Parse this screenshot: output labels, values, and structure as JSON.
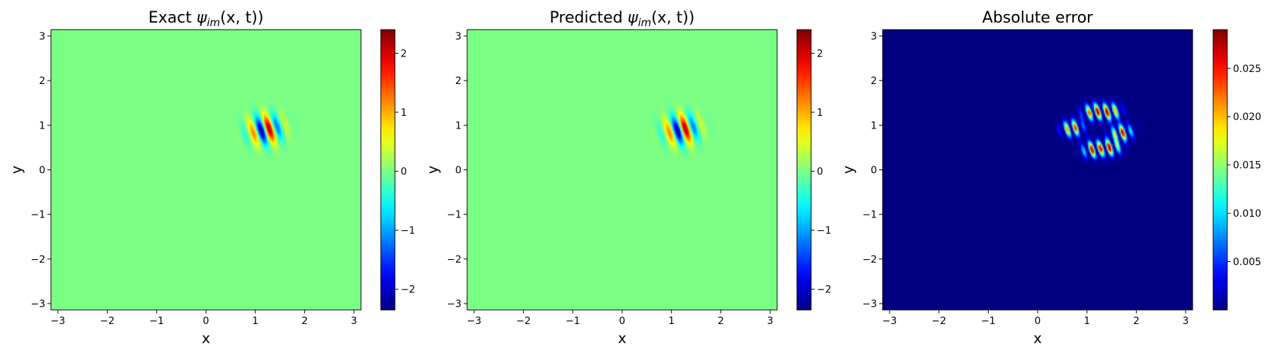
{
  "chart_data": [
    {
      "type": "heatmap",
      "title_prefix": "Exact ",
      "title_math": "ψ",
      "title_sub": "im",
      "title_suffix": "(x, t))",
      "xlabel": "x",
      "ylabel": "y",
      "xlim": [
        -3.14159,
        3.14159
      ],
      "ylim": [
        -3.14159,
        3.14159
      ],
      "xticks": [
        -3,
        -2,
        -1,
        0,
        1,
        2,
        3
      ],
      "yticks": [
        -3,
        -2,
        -1,
        0,
        1,
        2,
        3
      ],
      "colormap": "jet",
      "colorbar": {
        "min": -2.35,
        "max": 2.4,
        "ticks": [
          -2,
          -1,
          0,
          1,
          2
        ]
      },
      "field": {
        "kind": "wavepacket",
        "center": [
          1.2,
          0.9
        ],
        "amplitude": 2.4
      }
    },
    {
      "type": "heatmap",
      "title_prefix": "Predicted ",
      "title_math": "ψ",
      "title_sub": "im",
      "title_suffix": "(x, t))",
      "xlabel": "x",
      "ylabel": "y",
      "xlim": [
        -3.14159,
        3.14159
      ],
      "ylim": [
        -3.14159,
        3.14159
      ],
      "xticks": [
        -3,
        -2,
        -1,
        0,
        1,
        2,
        3
      ],
      "yticks": [
        -3,
        -2,
        -1,
        0,
        1,
        2,
        3
      ],
      "colormap": "jet",
      "colorbar": {
        "min": -2.35,
        "max": 2.4,
        "ticks": [
          -2,
          -1,
          0,
          1,
          2
        ]
      },
      "field": {
        "kind": "wavepacket",
        "center": [
          1.2,
          0.9
        ],
        "amplitude": 2.4
      }
    },
    {
      "type": "heatmap",
      "title_prefix": "Absolute error",
      "title_math": "",
      "title_sub": "",
      "title_suffix": "",
      "xlabel": "x",
      "ylabel": "y",
      "xlim": [
        -3.14159,
        3.14159
      ],
      "ylim": [
        -3.14159,
        3.14159
      ],
      "xticks": [
        -3,
        -2,
        -1,
        0,
        1,
        2,
        3
      ],
      "yticks": [
        -3,
        -2,
        -1,
        0,
        1,
        2,
        3
      ],
      "colormap": "jet",
      "colorbar": {
        "min": 0.0,
        "max": 0.029,
        "ticks": [
          0.005,
          0.01,
          0.015,
          0.02,
          0.025
        ]
      },
      "field": {
        "kind": "error",
        "center": [
          1.25,
          0.88
        ],
        "amplitude": 0.029
      }
    }
  ]
}
